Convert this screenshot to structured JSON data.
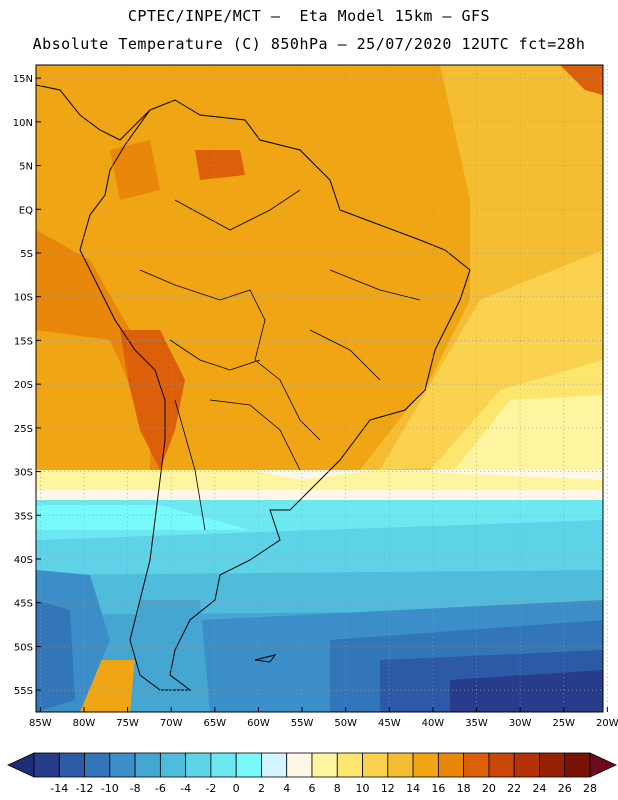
{
  "header": {
    "line1": "CPTEC/INPE/MCT –  Eta Model 15km – GFS",
    "line2": "Absolute Temperature (C) 850hPa – 25/07/2020 12UTC fct=28h"
  },
  "map": {
    "lat_labels": [
      "15N",
      "10N",
      "5N",
      "EQ",
      "5S",
      "10S",
      "15S",
      "20S",
      "25S",
      "30S",
      "35S",
      "40S",
      "45S",
      "50S",
      "55S"
    ],
    "lat_values": [
      15,
      10,
      5,
      0,
      -5,
      -10,
      -15,
      -20,
      -25,
      -30,
      -35,
      -40,
      -45,
      -50,
      -55
    ],
    "lon_labels": [
      "85W",
      "80W",
      "75W",
      "70W",
      "65W",
      "60W",
      "55W",
      "50W",
      "45W",
      "40W",
      "35W",
      "30W",
      "25W",
      "20W"
    ],
    "lon_values": [
      -85,
      -80,
      -75,
      -70,
      -65,
      -60,
      -55,
      -50,
      -45,
      -40,
      -35,
      -30,
      -25,
      -20
    ],
    "lat_range": [
      -57.5,
      16.5
    ],
    "lon_range": [
      -85.5,
      -20.5
    ]
  },
  "legend": {
    "labels": [
      "-14",
      "-12",
      "-10",
      "-8",
      "-6",
      "-4",
      "-2",
      "0",
      "2",
      "4",
      "6",
      "8",
      "10",
      "12",
      "14",
      "16",
      "18",
      "20",
      "22",
      "24",
      "26",
      "28"
    ],
    "colors": [
      "#283c8c",
      "#2d5aa6",
      "#3275b9",
      "#3c8ec8",
      "#46a6d2",
      "#50bcdc",
      "#5ed2e6",
      "#6ee8f0",
      "#78fafa",
      "#d2f5ff",
      "#fff8e6",
      "#fff5a0",
      "#fde66e",
      "#fad250",
      "#f5be32",
      "#f0a514",
      "#e8870a",
      "#dc5f0a",
      "#c8460a",
      "#b43208",
      "#962206",
      "#7a1206"
    ],
    "under_color": "#1e2d78",
    "over_color": "#6e0a1e"
  }
}
